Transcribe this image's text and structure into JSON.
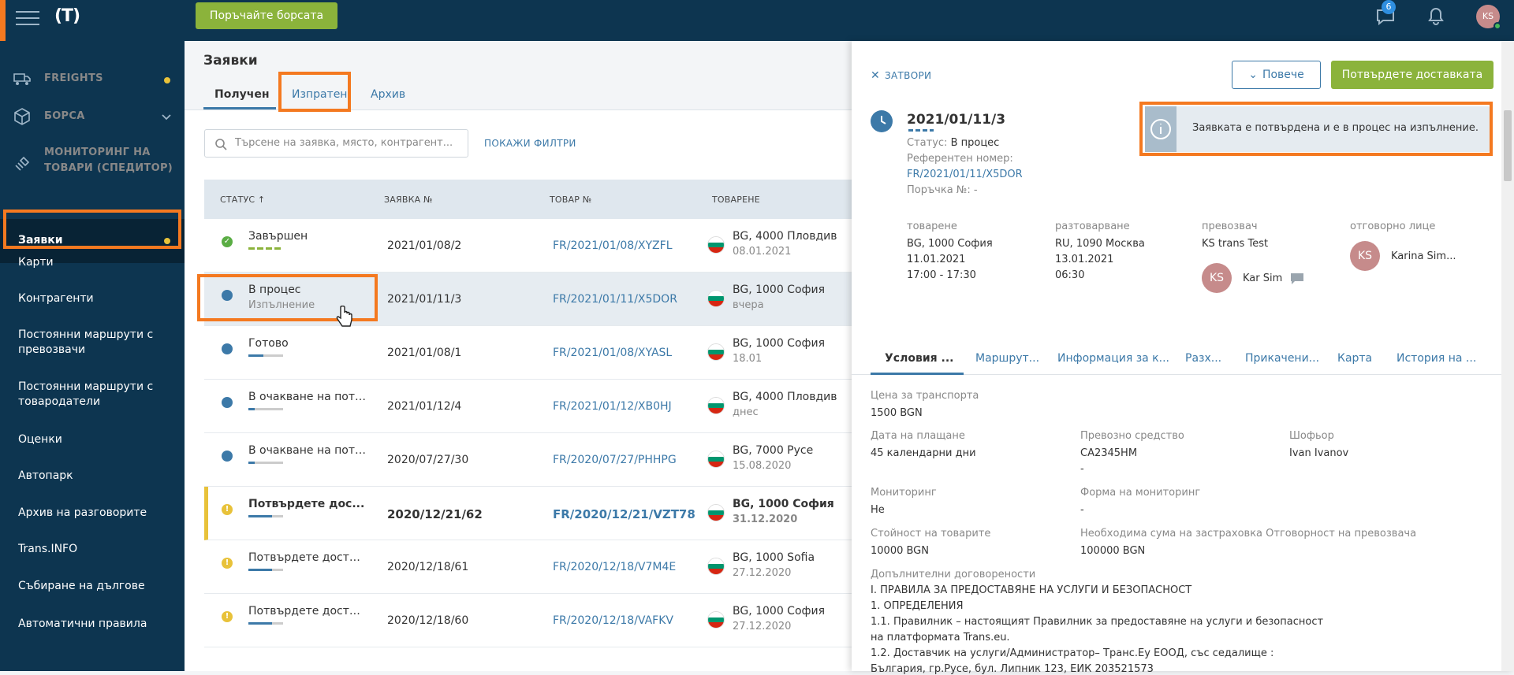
{
  "topbar": {
    "cta": "Поръчайте борсата",
    "badge": "6",
    "avatar": "KS"
  },
  "sidebar": {
    "freights": "FREIGHTS",
    "borsa": "БОРСА",
    "monitoring_1": "МОНИТОРИНГ НА",
    "monitoring_2": "ТОВАРИ (СПЕДИТОР)",
    "items": [
      "Заявки",
      "Карти",
      "Контрагенти",
      "Постоянни маршрути с",
      "превозвачи",
      "Постоянни маршрути с",
      "товародатели",
      "Оценки",
      "Автопарк",
      "Архив на разговорите",
      "Trans.INFO",
      "Събиране на дългове",
      "Автоматични правила"
    ]
  },
  "main": {
    "title": "Заявки",
    "tabs": [
      "Получен",
      "Изпратен",
      "Архив"
    ],
    "search_placeholder": "Търсене на заявка, място, контрагент...",
    "filters": "ПОКАЖИ ФИЛТРИ",
    "headers": [
      "СТАТУС ↑",
      "ЗАЯВКА №",
      "ТОВАР №",
      "ТОВАРЕНЕ"
    ],
    "rows": [
      {
        "status": "Завършен",
        "sub": "",
        "no": "2021/01/08/2",
        "goods": "FR/2021/01/08/XYZFL",
        "load": "BG, 4000 Пловдив",
        "date": "08.01.2021"
      },
      {
        "status": "В процес",
        "sub": "Изпълнение",
        "no": "2021/01/11/3",
        "goods": "FR/2021/01/11/X5DOR",
        "load": "BG, 1000 София",
        "date": "вчера"
      },
      {
        "status": "Готово",
        "sub": "",
        "no": "2021/01/08/1",
        "goods": "FR/2021/01/08/XYASL",
        "load": "BG, 1000 София",
        "date": "18.01"
      },
      {
        "status": "В очакване на потвъ...",
        "sub": "",
        "no": "2021/01/12/4",
        "goods": "FR/2021/01/12/XB0HJ",
        "load": "BG, 4000 Пловдив",
        "date": "днес"
      },
      {
        "status": "В очакване на потвъ...",
        "sub": "",
        "no": "2020/07/27/30",
        "goods": "FR/2020/07/27/PHHPG",
        "load": "BG, 7000 Русе",
        "date": "15.08.2020"
      },
      {
        "status": "Потвърдете дос...",
        "sub": "",
        "no": "2020/12/21/62",
        "goods": "FR/2020/12/21/VZT78",
        "load": "BG, 1000 София",
        "date": "31.12.2020"
      },
      {
        "status": "Потвърдете доставк...",
        "sub": "",
        "no": "2020/12/18/61",
        "goods": "FR/2020/12/18/V7M4E",
        "load": "BG, 1000 Sofia",
        "date": "27.12.2020"
      },
      {
        "status": "Потвърдете доставк...",
        "sub": "",
        "no": "2020/12/18/60",
        "goods": "FR/2020/12/18/VAFKV",
        "load": "BG, 1000 София",
        "date": "27.12.2020"
      }
    ]
  },
  "panel": {
    "close": "ЗАТВОРИ",
    "more": "Повече",
    "confirm": "Потвърдете доставката",
    "info": "Заявката е потвърдена и е в процес на изпълнение.",
    "order_no": "2021/01/11/3",
    "status_label": "Статус:",
    "status_value": "В процес",
    "ref_label": "Референтен номер:",
    "ref_value": "FR/2021/01/11/X5DOR",
    "purchase": "Поръчка №: -",
    "load_label": "товарене",
    "load_place": "BG, 1000 София",
    "load_date": "11.01.2021",
    "load_time": "17:00 - 17:30",
    "unload_label": "разтоварване",
    "unload_place": "RU, 1090 Москва",
    "unload_date": "13.01.2021",
    "unload_time": "06:30",
    "carrier_label": "превозвач",
    "carrier_name": "KS trans Test",
    "carrier_avatar": "KS",
    "carrier_person": "Kar Sim",
    "resp_label": "отговорно лице",
    "resp_avatar": "KS",
    "resp_name": "Karina Sim...",
    "tabs": [
      "Условия ...",
      "Маршрут...",
      "Информация за к...",
      "Разх...",
      "Прикачени...",
      "Карта",
      "История на ..."
    ],
    "price_label": "Цена за транспорта",
    "price": "1500 BGN",
    "pay_label": "Дата на плащане",
    "pay": "45 календарни дни",
    "vehicle_label": "Превозно средство",
    "vehicle": "СА2345НМ",
    "vehicle2": "-",
    "driver_label": "Шофьор",
    "driver": "Ivan Ivanov",
    "mon_label": "Мониторинг",
    "mon": "Не",
    "monform_label": "Форма на мониторинг",
    "monform": "-",
    "goods_value_label": "Стойност на товарите",
    "goods_value": "10000 BGN",
    "ins_label": "Необходима сума на застраховка Отговорност на превозвача",
    "ins": "100000 BGN",
    "extra_label": "Допълнителни договорености",
    "text": [
      "I. ПРАВИЛА ЗА ПРЕДОСТАВЯНЕ НА УСЛУГИ И БЕЗОПАСНОСТ",
      "1. ОПРЕДЕЛЕНИЯ",
      "1.1. Правилник – настоящият Правилник за предоставяне на услуги и безопасност",
      "на платформата Trans.eu.",
      "1.2. Доставчик на услуги/Администратор– Транс.Еу ЕООД, със седалище :",
      "България, гр.Русе, бул. Липник 123, ЕИК 203521573"
    ]
  },
  "colors": {
    "navy": "#0d3550",
    "orange": "#f47920",
    "green": "#8bb33b",
    "link": "#3c79a8"
  }
}
